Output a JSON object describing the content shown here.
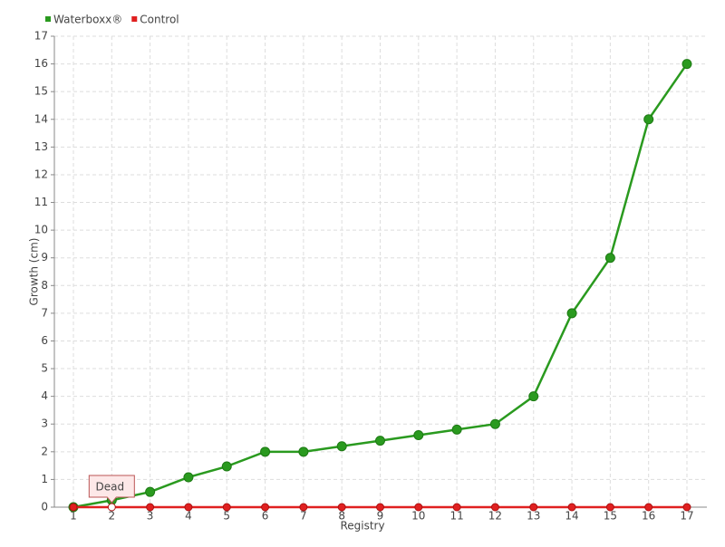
{
  "chart_data": {
    "type": "line",
    "x_label": "Registry",
    "y_label": "Growth (cm)",
    "categories": [
      "1",
      "2",
      "3",
      "4",
      "5",
      "6",
      "7",
      "8",
      "9",
      "10",
      "11",
      "12",
      "13",
      "14",
      "15",
      "16",
      "17"
    ],
    "series": [
      {
        "name": "Waterboxx®",
        "color": "#2a9a1f",
        "values": [
          0,
          0.25,
          0.55,
          1.08,
          1.47,
          2,
          2,
          2.2,
          2.4,
          2.6,
          2.8,
          3,
          4,
          7,
          9,
          14,
          16
        ]
      },
      {
        "name": "Control",
        "color": "#e02020",
        "values": [
          0,
          0,
          0,
          0,
          0,
          0,
          0,
          0,
          0,
          0,
          0,
          0,
          0,
          0,
          0,
          0,
          0
        ]
      }
    ],
    "annotation": "Dead",
    "ylim": [
      0,
      17
    ],
    "yticks": [
      0,
      1,
      2,
      3,
      4,
      5,
      6,
      7,
      8,
      9,
      10,
      11,
      12,
      13,
      14,
      15,
      16,
      17
    ],
    "grid": true,
    "legend": "top-left"
  }
}
